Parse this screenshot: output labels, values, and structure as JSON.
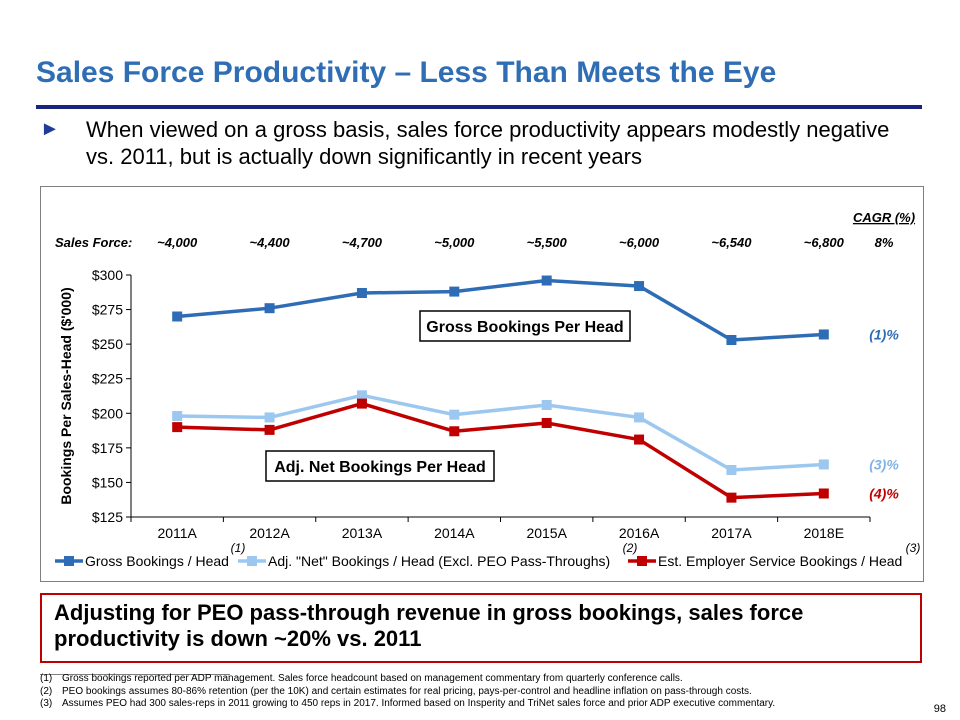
{
  "slide": {
    "title": "Sales Force Productivity – Less Than Meets the Eye",
    "bullet_marker": "►",
    "bullet": "When viewed on a gross basis, sales force productivity appears modestly negative vs. 2011, but is actually down significantly in recent years",
    "callout": "Adjusting for PEO pass-through revenue in gross bookings, sales force productivity is down ~20% vs. 2011",
    "page_number": "98",
    "footnotes": [
      {
        "mark": "(1)",
        "text": "Gross bookings reported per ADP management. Sales force headcount based on management commentary from quarterly conference calls."
      },
      {
        "mark": "(2)",
        "text": "PEO bookings assumes 80-86% retention (per the 10K) and certain estimates for real pricing, pays-per-control and headline inflation on pass-through costs."
      },
      {
        "mark": "(3)",
        "text": "Assumes PEO had 300 sales-reps in 2011 growing to 450 reps in 2017. Informed based on Insperity and TriNet sales force and prior ADP executive commentary."
      }
    ]
  },
  "chart_data": {
    "type": "line",
    "title": "",
    "xlabel": "",
    "ylabel": "Bookings Per Sales-Head ($'000)",
    "categories": [
      "2011A",
      "2012A",
      "2013A",
      "2014A",
      "2015A",
      "2016A",
      "2017A",
      "2018E"
    ],
    "ylim": [
      125,
      300
    ],
    "yticks": [
      125,
      150,
      175,
      200,
      225,
      250,
      275,
      300
    ],
    "ytick_labels": [
      "$125",
      "$150",
      "$175",
      "$200",
      "$225",
      "$250",
      "$275",
      "$300"
    ],
    "sales_force_label": "Sales Force:",
    "sales_force": [
      "~4,000",
      "~4,400",
      "~4,700",
      "~5,000",
      "~5,500",
      "~6,000",
      "~6,540",
      "~6,800"
    ],
    "cagr_header": "CAGR (%)",
    "sales_force_cagr": "8%",
    "series": [
      {
        "name": "Gross Bookings / Head",
        "footnote": "(1)",
        "color": "#2e6db5",
        "values": [
          270,
          276,
          287,
          288,
          296,
          292,
          253,
          257
        ],
        "cagr": "(1)%",
        "cagr_color": "#2e6db5"
      },
      {
        "name": "Adj. \"Net\" Bookings / Head (Excl. PEO Pass-Throughs)",
        "footnote": "(2)",
        "color": "#9cc8f0",
        "values": [
          198,
          197,
          213,
          199,
          206,
          197,
          159,
          163
        ],
        "cagr": "(3)%",
        "cagr_color": "#7fb2e5"
      },
      {
        "name": "Est. Employer Service Bookings / Head",
        "footnote": "(3)",
        "color": "#c00000",
        "values": [
          190,
          188,
          207,
          187,
          193,
          181,
          139,
          142
        ],
        "cagr": "(4)%",
        "cagr_color": "#c00000"
      }
    ],
    "annotations": [
      "Gross Bookings Per Head",
      "Adj. Net Bookings Per Head"
    ],
    "legend_position": "bottom",
    "grid": false
  }
}
